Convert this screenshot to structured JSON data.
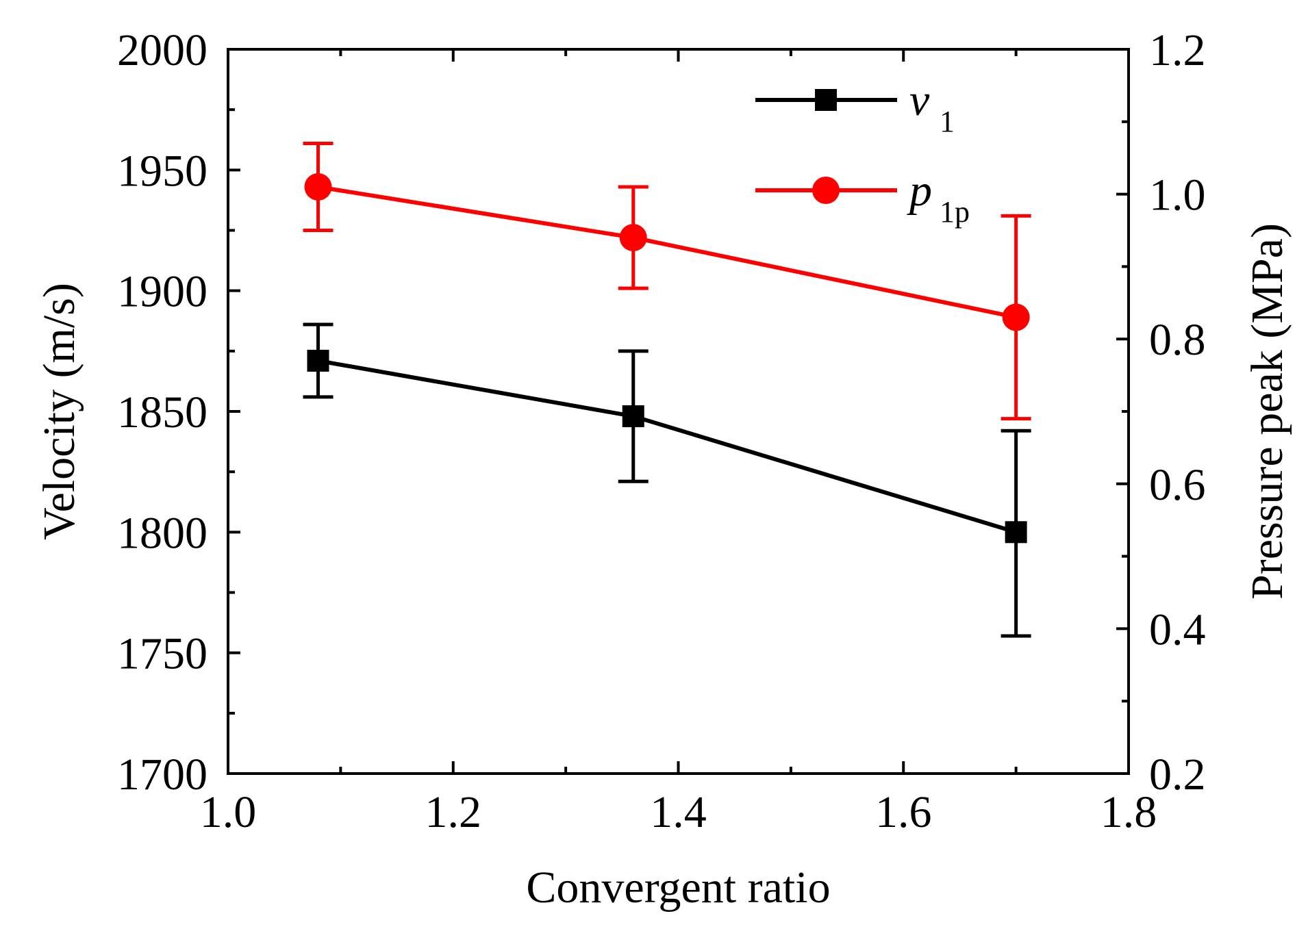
{
  "chart_data": {
    "type": "line",
    "title": "",
    "xlabel": "Convergent ratio",
    "ylabel_left": "Velocity (m/s)",
    "ylabel_right": "Pressure peak (MPa)",
    "xlim": [
      1.0,
      1.8
    ],
    "ylim_left": [
      1700,
      2000
    ],
    "ylim_right": [
      0.2,
      1.2
    ],
    "x_ticks": [
      "1.0",
      "1.2",
      "1.4",
      "1.6",
      "1.8"
    ],
    "y_left_ticks": [
      "1700",
      "1750",
      "1800",
      "1850",
      "1900",
      "1950",
      "2000"
    ],
    "y_right_ticks": [
      "0.2",
      "0.4",
      "0.6",
      "0.8",
      "1.0",
      "1.2"
    ],
    "grid": false,
    "legend_position": "top-right",
    "series": [
      {
        "name": "v",
        "name_subscript": "1",
        "axis": "left",
        "color": "#000000",
        "marker": "square",
        "x": [
          1.08,
          1.36,
          1.7
        ],
        "y": [
          1871,
          1848,
          1800
        ],
        "err_low": [
          1856,
          1821,
          1757
        ],
        "err_high": [
          1886,
          1875,
          1842
        ]
      },
      {
        "name": "p",
        "name_subscript": "1p",
        "axis": "right",
        "color": "#ff0000",
        "marker": "circle",
        "x": [
          1.08,
          1.36,
          1.7
        ],
        "y": [
          1.01,
          0.94,
          0.83
        ],
        "err_low": [
          0.95,
          0.87,
          0.69
        ],
        "err_high": [
          1.07,
          1.01,
          0.97
        ]
      }
    ]
  }
}
